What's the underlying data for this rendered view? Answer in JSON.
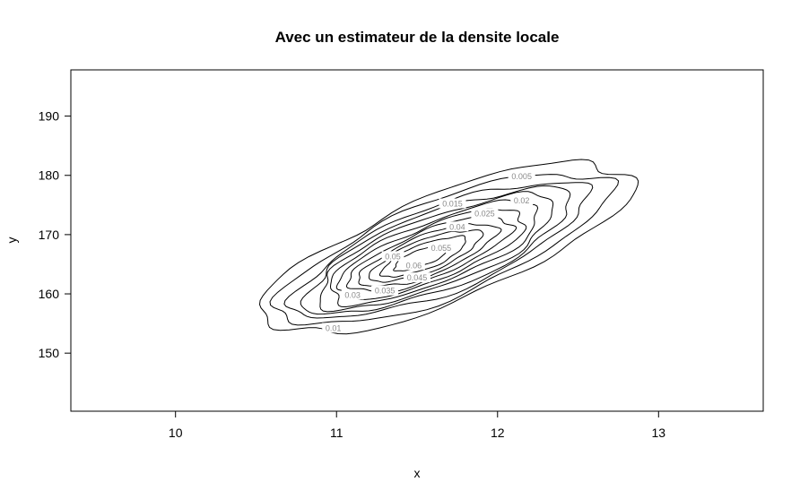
{
  "chart_data": {
    "type": "contour",
    "title": "Avec un estimateur de la densite locale",
    "xlabel": "x",
    "ylabel": "y",
    "xlim": [
      9.35,
      13.65
    ],
    "ylim": [
      140.2,
      197.8
    ],
    "x_ticks": [
      10,
      11,
      12,
      13
    ],
    "y_ticks": [
      150,
      160,
      170,
      180,
      190
    ],
    "center": {
      "x": 11.68,
      "y": 167.8
    },
    "peak": {
      "x": 11.5,
      "y": 165.8
    },
    "levels": [
      {
        "value": 0.005,
        "label": "0.005",
        "size": 1.0
      },
      {
        "value": 0.01,
        "label": "0.01",
        "size": 0.89
      },
      {
        "value": 0.015,
        "label": "0.015",
        "size": 0.79
      },
      {
        "value": 0.02,
        "label": "0.02",
        "size": 0.72
      },
      {
        "value": 0.025,
        "label": "0.025",
        "size": 0.65
      },
      {
        "value": 0.03,
        "label": "0.03",
        "size": 0.58
      },
      {
        "value": 0.035,
        "label": "0.035",
        "size": 0.51
      },
      {
        "value": 0.04,
        "label": "0.04",
        "size": 0.44
      },
      {
        "value": 0.045,
        "label": "0.045",
        "size": 0.37
      },
      {
        "value": 0.05,
        "label": "0.05",
        "size": 0.3
      },
      {
        "value": 0.055,
        "label": "0.055",
        "size": 0.23
      },
      {
        "value": 0.06,
        "label": "0.06",
        "size": 0.15
      }
    ],
    "label_positions": [
      {
        "label": "0.005",
        "x": 12.15,
        "y": 179.8
      },
      {
        "label": "0.01",
        "x": 10.98,
        "y": 154.2
      },
      {
        "label": "0.015",
        "x": 11.72,
        "y": 175.2
      },
      {
        "label": "0.02",
        "x": 12.15,
        "y": 175.7
      },
      {
        "label": "0.025",
        "x": 11.92,
        "y": 173.5
      },
      {
        "label": "0.03",
        "x": 11.1,
        "y": 159.8
      },
      {
        "label": "0.035",
        "x": 11.3,
        "y": 160.5
      },
      {
        "label": "0.04",
        "x": 11.75,
        "y": 171.3
      },
      {
        "label": "0.045",
        "x": 11.5,
        "y": 162.7
      },
      {
        "label": "0.05",
        "x": 11.35,
        "y": 166.3
      },
      {
        "label": "0.055",
        "x": 11.65,
        "y": 167.7
      },
      {
        "label": "0.06",
        "x": 11.48,
        "y": 164.8
      }
    ],
    "legend": "none",
    "grid": false
  }
}
